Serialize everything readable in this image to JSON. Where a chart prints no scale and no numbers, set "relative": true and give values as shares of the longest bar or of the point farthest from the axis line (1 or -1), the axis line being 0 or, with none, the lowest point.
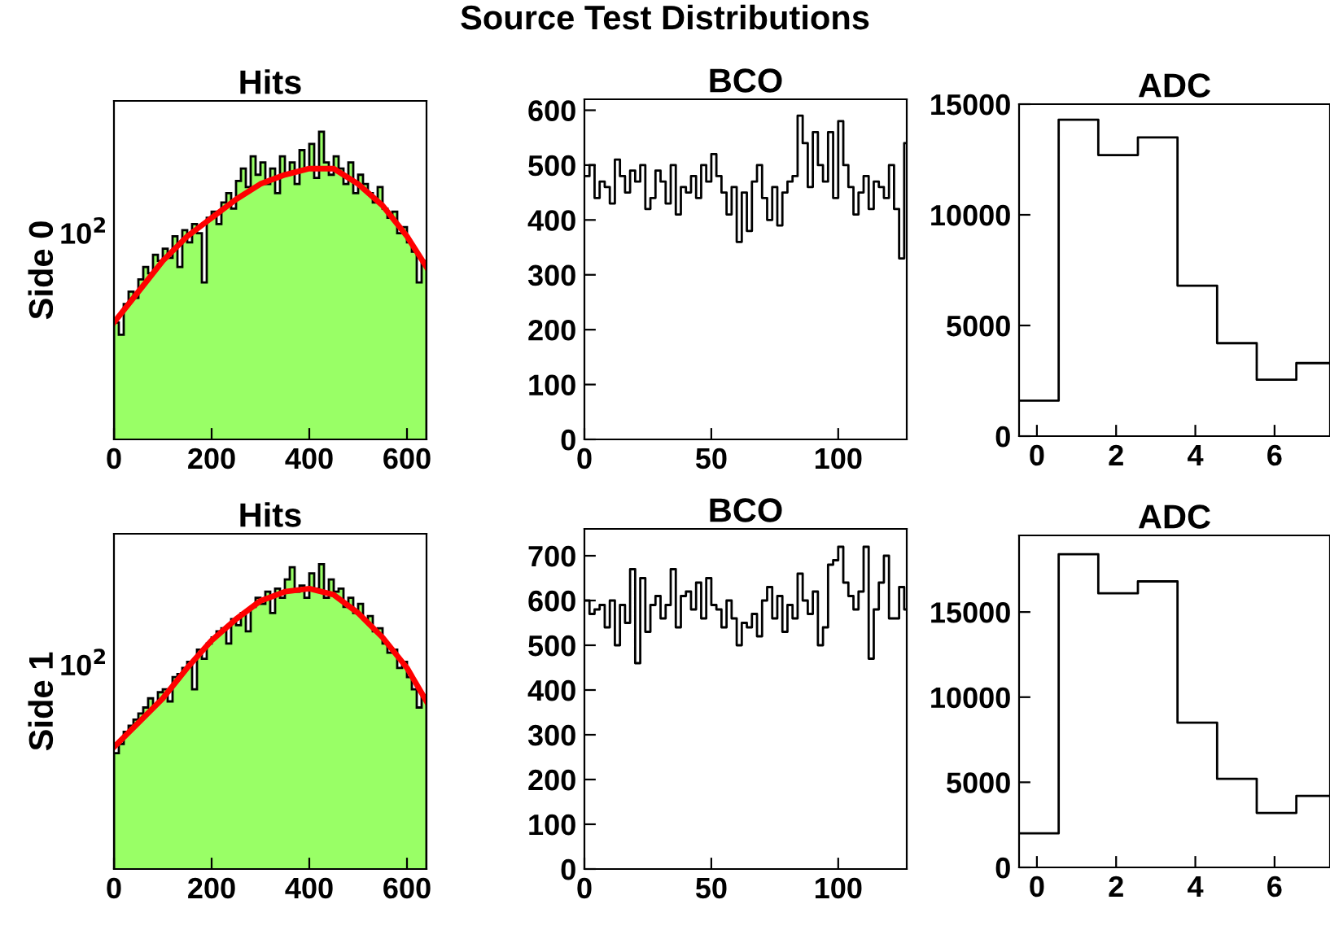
{
  "chart_data": [
    {
      "type": "histogram",
      "title": "Hits",
      "ylabel": "Side 0",
      "annotations": [
        "Source Test Distributions",
        "10$^{2}$"
      ],
      "relative": true,
      "grid": false,
      "xlim": [
        0,
        640
      ],
      "xticks": [
        0,
        200,
        400,
        600
      ],
      "series": [
        {
          "color": "#99ff66",
          "bins": [
            0,
            10,
            20,
            30,
            40,
            50,
            60,
            70,
            80,
            90,
            100,
            110,
            120,
            130,
            140,
            150,
            160,
            170,
            180,
            190,
            200,
            210,
            220,
            230,
            240,
            250,
            260,
            270,
            280,
            290,
            300,
            310,
            320,
            330,
            340,
            350,
            360,
            370,
            380,
            390,
            400,
            410,
            420,
            430,
            440,
            450,
            460,
            470,
            480,
            490,
            500,
            510,
            520,
            530,
            540,
            550,
            560,
            570,
            580,
            590,
            600,
            610,
            620,
            630,
            640
          ],
          "values": [
            0.38,
            0.34,
            0.44,
            0.48,
            0.46,
            0.52,
            0.56,
            0.54,
            0.6,
            0.58,
            0.62,
            0.59,
            0.66,
            0.56,
            0.68,
            0.64,
            0.7,
            0.67,
            0.51,
            0.72,
            0.74,
            0.7,
            0.77,
            0.8,
            0.75,
            0.84,
            0.88,
            0.82,
            0.92,
            0.86,
            0.9,
            0.83,
            0.88,
            0.8,
            0.92,
            0.86,
            0.9,
            0.83,
            0.94,
            0.88,
            0.96,
            0.85,
            1,
            0.9,
            0.86,
            0.92,
            0.88,
            0.83,
            0.9,
            0.8,
            0.86,
            0.83,
            0.8,
            0.77,
            0.82,
            0.75,
            0.72,
            0.74,
            0.67,
            0.69,
            0.64,
            0.61,
            0.51,
            0.58
          ]
        },
        {
          "type": "line",
          "color": "#ff0000",
          "x": [
            0,
            50,
            100,
            150,
            200,
            250,
            300,
            350,
            400,
            450,
            500,
            550,
            600,
            640
          ],
          "values": [
            0.38,
            0.48,
            0.58,
            0.66,
            0.72,
            0.78,
            0.83,
            0.86,
            0.88,
            0.88,
            0.83,
            0.76,
            0.66,
            0.56
          ]
        }
      ]
    },
    {
      "type": "step",
      "title": "BCO",
      "grid": false,
      "xlim": [
        0,
        127
      ],
      "xticks": [
        0,
        50,
        100
      ],
      "ylim": [
        0,
        620
      ],
      "yticks": [
        0,
        100,
        200,
        300,
        400,
        500,
        600
      ],
      "series": [
        {
          "color": "#000000",
          "x": [
            0,
            2,
            4,
            6,
            8,
            10,
            12,
            14,
            16,
            18,
            20,
            22,
            24,
            26,
            28,
            30,
            32,
            34,
            36,
            38,
            40,
            42,
            44,
            46,
            48,
            50,
            52,
            54,
            56,
            58,
            60,
            62,
            64,
            66,
            68,
            70,
            72,
            74,
            76,
            78,
            80,
            82,
            84,
            86,
            88,
            90,
            92,
            94,
            96,
            98,
            100,
            102,
            104,
            106,
            108,
            110,
            112,
            114,
            116,
            118,
            120,
            122,
            124,
            126,
            127
          ],
          "values": [
            480,
            500,
            440,
            470,
            460,
            430,
            510,
            480,
            450,
            490,
            470,
            500,
            420,
            440,
            490,
            470,
            430,
            500,
            410,
            460,
            450,
            480,
            440,
            500,
            470,
            520,
            480,
            450,
            410,
            460,
            360,
            450,
            380,
            470,
            500,
            440,
            400,
            460,
            390,
            450,
            470,
            480,
            590,
            540,
            460,
            560,
            500,
            470,
            560,
            440,
            580,
            500,
            460,
            410,
            450,
            480,
            420,
            470,
            460,
            440,
            500,
            420,
            330,
            540,
            540
          ]
        }
      ]
    },
    {
      "type": "step",
      "title": "ADC",
      "grid": false,
      "xlim": [
        -0.45,
        7.4
      ],
      "xticks": [
        0,
        2,
        4,
        6
      ],
      "ylim": [
        0,
        15000
      ],
      "yticks": [
        0,
        5000,
        10000,
        15000
      ],
      "series": [
        {
          "color": "#000000",
          "x": [
            -0.45,
            0.55,
            1.55,
            2.55,
            3.55,
            4.55,
            5.55,
            6.55,
            7.4
          ],
          "values": [
            1600,
            14300,
            12700,
            13500,
            6800,
            4200,
            2550,
            3300,
            3300
          ]
        }
      ]
    },
    {
      "type": "histogram",
      "title": "Hits",
      "ylabel": "Side 1",
      "annotations": [
        "10$^{2}$"
      ],
      "relative": true,
      "grid": false,
      "xlim": [
        0,
        640
      ],
      "xticks": [
        0,
        200,
        400,
        600
      ],
      "series": [
        {
          "color": "#99ff66",
          "bins": [
            0,
            10,
            20,
            30,
            40,
            50,
            60,
            70,
            80,
            90,
            100,
            110,
            120,
            130,
            140,
            150,
            160,
            170,
            180,
            190,
            200,
            210,
            220,
            230,
            240,
            250,
            260,
            270,
            280,
            290,
            300,
            310,
            320,
            330,
            340,
            350,
            360,
            370,
            380,
            390,
            400,
            410,
            420,
            430,
            440,
            450,
            460,
            470,
            480,
            490,
            500,
            510,
            520,
            530,
            540,
            550,
            560,
            570,
            580,
            590,
            600,
            610,
            620,
            630,
            640
          ],
          "values": [
            0.38,
            0.41,
            0.45,
            0.47,
            0.49,
            0.51,
            0.53,
            0.56,
            0.54,
            0.58,
            0.59,
            0.55,
            0.63,
            0.64,
            0.66,
            0.68,
            0.59,
            0.72,
            0.69,
            0.74,
            0.76,
            0.78,
            0.79,
            0.74,
            0.82,
            0.8,
            0.84,
            0.78,
            0.86,
            0.89,
            0.87,
            0.91,
            0.84,
            0.92,
            0.89,
            0.95,
            0.99,
            0.91,
            0.93,
            0.89,
            0.97,
            0.92,
            1,
            0.89,
            0.95,
            0.91,
            0.92,
            0.86,
            0.89,
            0.84,
            0.87,
            0.82,
            0.83,
            0.78,
            0.79,
            0.74,
            0.71,
            0.72,
            0.66,
            0.68,
            0.63,
            0.59,
            0.53,
            0.57
          ]
        },
        {
          "type": "line",
          "color": "#ff0000",
          "x": [
            0,
            50,
            100,
            150,
            200,
            250,
            300,
            350,
            400,
            450,
            500,
            550,
            600,
            640
          ],
          "values": [
            0.4,
            0.48,
            0.56,
            0.66,
            0.75,
            0.82,
            0.88,
            0.91,
            0.92,
            0.9,
            0.84,
            0.76,
            0.66,
            0.55
          ]
        }
      ]
    },
    {
      "type": "step",
      "title": "BCO",
      "grid": false,
      "xlim": [
        0,
        127
      ],
      "xticks": [
        0,
        50,
        100
      ],
      "ylim": [
        0,
        760
      ],
      "yticks": [
        0,
        100,
        200,
        300,
        400,
        500,
        600,
        700
      ],
      "series": [
        {
          "color": "#000000",
          "x": [
            0,
            2,
            4,
            6,
            8,
            10,
            12,
            14,
            16,
            18,
            20,
            22,
            24,
            26,
            28,
            30,
            32,
            34,
            36,
            38,
            40,
            42,
            44,
            46,
            48,
            50,
            52,
            54,
            56,
            58,
            60,
            62,
            64,
            66,
            68,
            70,
            72,
            74,
            76,
            78,
            80,
            82,
            84,
            86,
            88,
            90,
            92,
            94,
            96,
            98,
            100,
            102,
            104,
            106,
            108,
            110,
            112,
            114,
            116,
            118,
            120,
            122,
            124,
            126,
            127
          ],
          "values": [
            600,
            570,
            580,
            590,
            540,
            600,
            500,
            590,
            550,
            670,
            460,
            650,
            530,
            590,
            610,
            560,
            590,
            670,
            540,
            610,
            620,
            580,
            640,
            560,
            650,
            590,
            580,
            540,
            600,
            560,
            500,
            550,
            540,
            570,
            520,
            600,
            630,
            560,
            610,
            530,
            590,
            560,
            660,
            600,
            570,
            620,
            500,
            540,
            680,
            690,
            720,
            640,
            610,
            580,
            620,
            720,
            470,
            580,
            640,
            700,
            560,
            560,
            630,
            580,
            580
          ]
        }
      ]
    },
    {
      "type": "step",
      "title": "ADC",
      "grid": false,
      "xlim": [
        -0.45,
        7.4
      ],
      "xticks": [
        0,
        2,
        4,
        6
      ],
      "ylim": [
        0,
        19500
      ],
      "yticks": [
        0,
        5000,
        10000,
        15000
      ],
      "series": [
        {
          "color": "#000000",
          "x": [
            -0.45,
            0.55,
            1.55,
            2.55,
            3.55,
            4.55,
            5.55,
            6.55,
            7.4
          ],
          "values": [
            2000,
            18400,
            16100,
            16800,
            8500,
            5200,
            3200,
            4200,
            4200
          ]
        }
      ]
    }
  ]
}
